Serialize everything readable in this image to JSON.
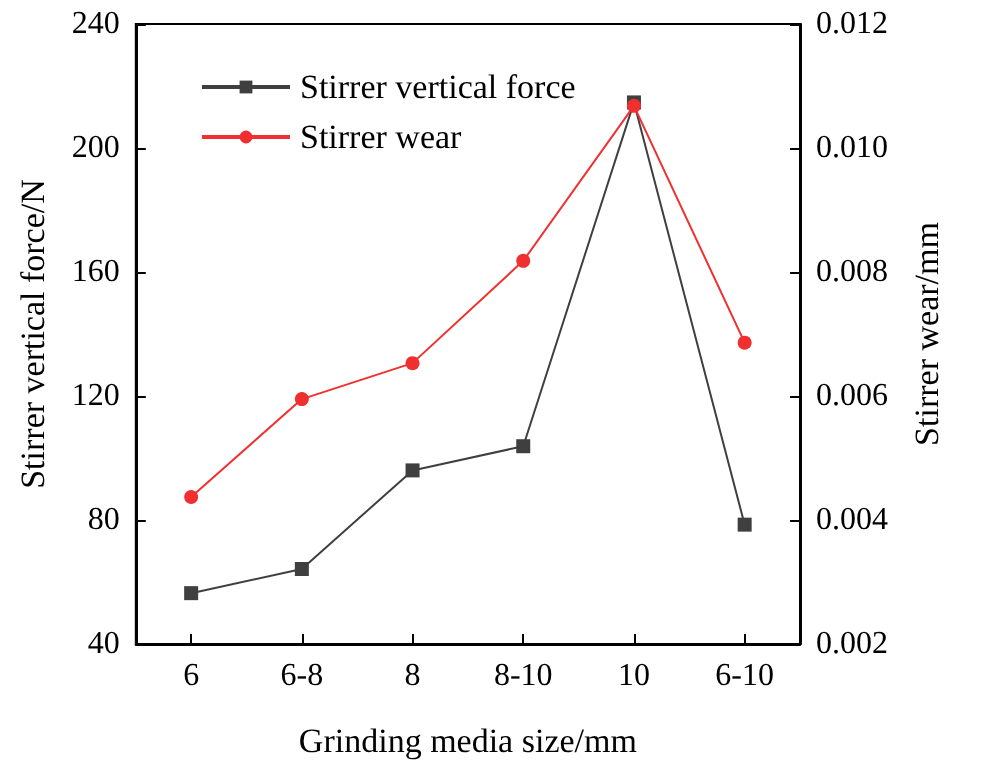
{
  "chart_data": {
    "type": "line",
    "xlabel": "Grinding media size/mm",
    "ylabel": "Stirrer vertical force/N",
    "y2label": "Stirrer wear/mm",
    "categories": [
      "6",
      "6-8",
      "8",
      "8-10",
      "10",
      "6-10"
    ],
    "series": [
      {
        "name": "Stirrer vertical force",
        "color": "#3f3f3f",
        "marker": "square",
        "values": [
          56.4,
          64.2,
          96,
          103.8,
          214.7,
          78.5
        ]
      },
      {
        "name": "Stirrer wear",
        "color": "#f03030",
        "marker": "circle",
        "axis": "y2",
        "values": [
          0.00437,
          0.00595,
          0.00653,
          0.00818,
          0.01068,
          0.00686
        ]
      }
    ],
    "ylim": [
      40,
      240
    ],
    "yticks": [
      40,
      80,
      120,
      160,
      200,
      240
    ],
    "y2lim": [
      0.002,
      0.012
    ],
    "y2ticks": [
      0.002,
      0.004,
      0.006,
      0.008,
      {
        "value": 0.01,
        "label": "0.010"
      },
      0.012
    ],
    "legend": "top left",
    "grid": false
  }
}
